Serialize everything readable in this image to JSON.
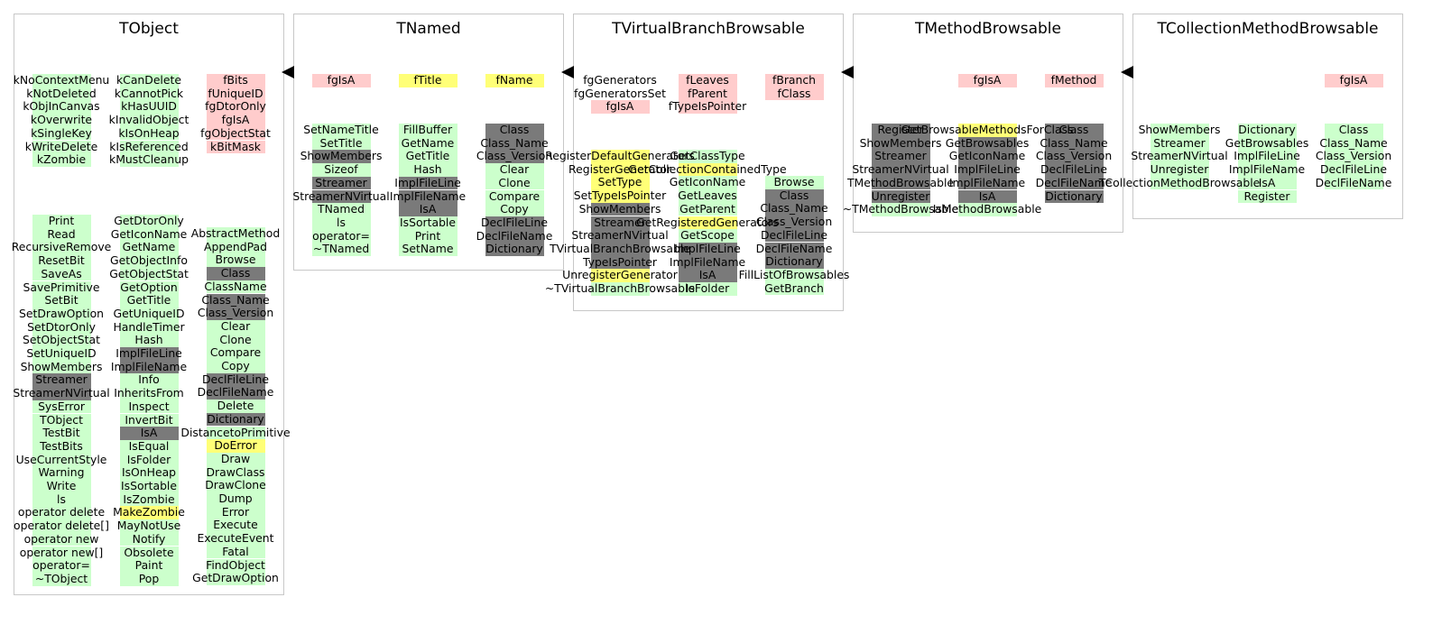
{
  "legend": {
    "colors": {
      "enum": "#ccffcc",
      "data_member": "#ffcccc",
      "private": "#7a7a7a",
      "overridden": "#ffff77"
    }
  },
  "classes": [
    {
      "title": "TObject",
      "columns": [
        {
          "kind": "enum",
          "items": [
            "kNoContextMenu",
            "kNotDeleted",
            "kObjInCanvas",
            "kOverwrite",
            "kSingleKey",
            "kWriteDelete",
            "kZombie"
          ]
        },
        {
          "kind": "enum",
          "items": [
            "kCanDelete",
            "kCannotPick",
            "kHasUUID",
            "kInvalidObject",
            "kIsOnHeap",
            "kIsReferenced",
            "kMustCleanup"
          ]
        },
        {
          "kind": "data",
          "items": [
            "fBits",
            "fUniqueID",
            "fgDtorOnly",
            "fgIsA",
            "fgObjectStat",
            "kBitMask"
          ]
        },
        {
          "kind": "methods",
          "items": [
            "Print",
            "Read",
            "RecursiveRemove",
            "ResetBit",
            "SaveAs",
            "SavePrimitive",
            "SetBit",
            "SetDrawOption",
            "SetDtorOnly",
            "SetObjectStat",
            "SetUniqueID",
            "ShowMembers",
            "Streamer",
            "StreamerNVirtual",
            "SysError",
            "TObject",
            "TestBit",
            "TestBits",
            "UseCurrentStyle",
            "Warning",
            "Write",
            "ls",
            "operator delete",
            "operator delete[]",
            "operator new",
            "operator new[]",
            "operator=",
            "~TObject"
          ]
        },
        {
          "kind": "methods",
          "items": [
            "GetDtorOnly",
            "GetIconName",
            "GetName",
            "GetObjectInfo",
            "GetObjectStat",
            "GetOption",
            "GetTitle",
            "GetUniqueID",
            "HandleTimer",
            "Hash",
            "ImplFileLine",
            "ImplFileName",
            "Info",
            "InheritsFrom",
            "Inspect",
            "InvertBit",
            "IsA",
            "IsEqual",
            "IsFolder",
            "IsOnHeap",
            "IsSortable",
            "IsZombie",
            "MakeZombie",
            "MayNotUse",
            "Notify",
            "Obsolete",
            "Paint",
            "Pop"
          ]
        },
        {
          "kind": "methods",
          "items": [
            "AbstractMethod",
            "AppendPad",
            "Browse",
            "Class",
            "ClassName",
            "Class_Name",
            "Class_Version",
            "Clear",
            "Clone",
            "Compare",
            "Copy",
            "DeclFileLine",
            "DeclFileName",
            "Delete",
            "Dictionary",
            "DistancetoPrimitive",
            "DoError",
            "Draw",
            "DrawClass",
            "DrawClone",
            "Dump",
            "Error",
            "Execute",
            "ExecuteEvent",
            "Fatal",
            "FindObject",
            "GetDrawOption"
          ]
        }
      ]
    },
    {
      "title": "TNamed",
      "columns": [
        {
          "kind": "data",
          "items": [
            "fgIsA"
          ]
        },
        {
          "kind": "data",
          "items": [
            "fTitle"
          ]
        },
        {
          "kind": "data",
          "items": [
            "fName"
          ]
        },
        {
          "kind": "methods",
          "items": [
            "SetNameTitle",
            "SetTitle",
            "ShowMembers",
            "Sizeof",
            "Streamer",
            "StreamerNVirtual",
            "TNamed",
            "ls",
            "operator=",
            "~TNamed"
          ]
        },
        {
          "kind": "methods",
          "items": [
            "FillBuffer",
            "GetName",
            "GetTitle",
            "Hash",
            "ImplFileLine",
            "ImplFileName",
            "IsA",
            "IsSortable",
            "Print",
            "SetName"
          ]
        },
        {
          "kind": "methods",
          "items": [
            "Class",
            "Class_Name",
            "Class_Version",
            "Clear",
            "Clone",
            "Compare",
            "Copy",
            "DeclFileLine",
            "DeclFileName",
            "Dictionary"
          ]
        }
      ]
    },
    {
      "title": "TVirtualBranchBrowsable",
      "columns": [
        {
          "kind": "data",
          "items": [
            "fgGenerators",
            "fgGeneratorsSet",
            "fgIsA"
          ]
        },
        {
          "kind": "data",
          "items": [
            "fLeaves",
            "fParent",
            "fTypeIsPointer"
          ]
        },
        {
          "kind": "data",
          "items": [
            "fBranch",
            "fClass"
          ]
        },
        {
          "kind": "methods",
          "items": [
            "RegisterDefaultGenerators",
            "RegisterGenerator",
            "SetType",
            "SetTypeIsPointer",
            "ShowMembers",
            "Streamer",
            "StreamerNVirtual",
            "TVirtualBranchBrowsable",
            "TypeIsPointer",
            "UnregisterGenerator",
            "~TVirtualBranchBrowsable"
          ]
        },
        {
          "kind": "methods",
          "items": [
            "GetClassType",
            "GetCollectionContainedType",
            "GetIconName",
            "GetLeaves",
            "GetParent",
            "GetRegisteredGenerators",
            "GetScope",
            "ImplFileLine",
            "ImplFileName",
            "IsA",
            "IsFolder"
          ]
        },
        {
          "kind": "methods",
          "items": [
            "Browse",
            "Class",
            "Class_Name",
            "Class_Version",
            "DeclFileLine",
            "DeclFileName",
            "Dictionary",
            "FillListOfBrowsables",
            "GetBranch"
          ]
        }
      ]
    },
    {
      "title": "TMethodBrowsable",
      "columns": [
        {
          "kind": "data",
          "items": [
            "fgIsA"
          ]
        },
        {
          "kind": "data",
          "items": [
            "fMethod"
          ]
        },
        {
          "kind": "methods",
          "items": [
            "Register",
            "ShowMembers",
            "Streamer",
            "StreamerNVirtual",
            "TMethodBrowsable",
            "Unregister",
            "~TMethodBrowsable"
          ]
        },
        {
          "kind": "methods",
          "items": [
            "GetBrowsableMethodsForClass",
            "GetBrowsables",
            "GetIconName",
            "ImplFileLine",
            "ImplFileName",
            "IsA",
            "IsMethodBrowsable"
          ]
        },
        {
          "kind": "methods",
          "items": [
            "Class",
            "Class_Name",
            "Class_Version",
            "DeclFileLine",
            "DeclFileName",
            "Dictionary"
          ]
        }
      ]
    },
    {
      "title": "TCollectionMethodBrowsable",
      "columns": [
        {
          "kind": "data",
          "items": [
            "fgIsA"
          ]
        },
        {
          "kind": "methods",
          "items": [
            "ShowMembers",
            "Streamer",
            "StreamerNVirtual",
            "Unregister",
            "TCollectionMethodBrowsable"
          ]
        },
        {
          "kind": "methods",
          "items": [
            "Dictionary",
            "GetBrowsables",
            "ImplFileLine",
            "ImplFileName",
            "IsA",
            "Register"
          ]
        },
        {
          "kind": "methods",
          "items": [
            "Class",
            "Class_Name",
            "Class_Version",
            "DeclFileLine",
            "DeclFileName"
          ]
        }
      ]
    }
  ]
}
